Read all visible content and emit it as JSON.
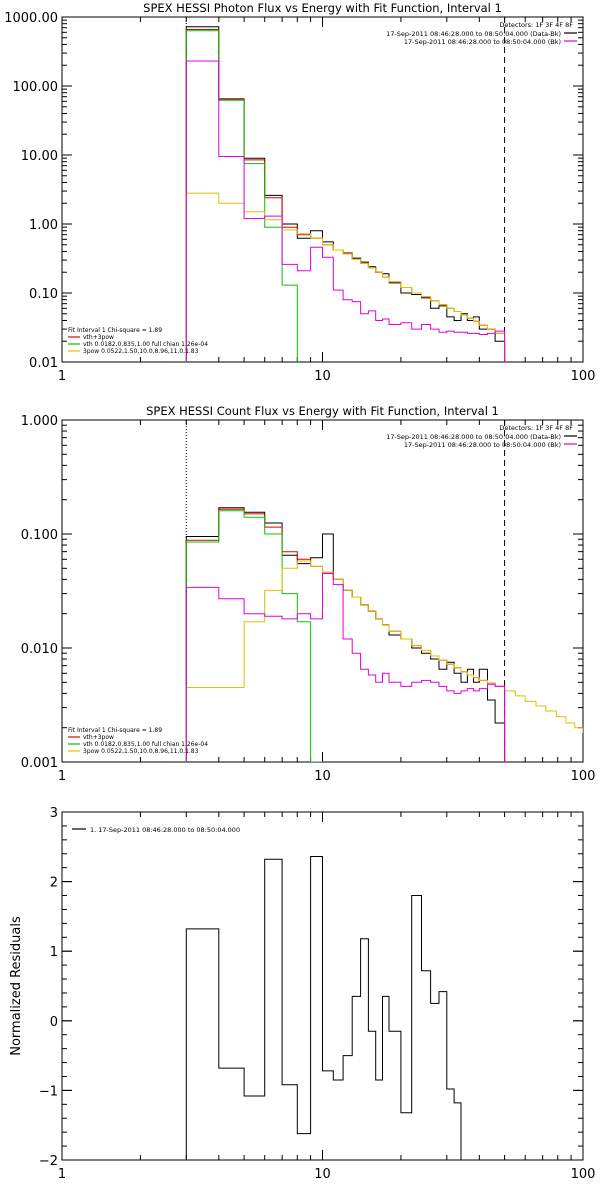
{
  "chart_data": [
    {
      "type": "line",
      "title": "SPEX HESSI Photon Flux vs Energy with Fit Function, Interval 1",
      "xscale": "log",
      "yscale": "log",
      "xlim": [
        1,
        100
      ],
      "ylim": [
        0.01,
        1000
      ],
      "xticks": [
        1,
        10,
        100
      ],
      "xtick_labels": [
        "1",
        "10",
        "100"
      ],
      "yticks": [
        0.01,
        0.1,
        1,
        10,
        100,
        1000
      ],
      "ytick_labels": [
        "0.01",
        "0.10",
        "1.00",
        "10.00",
        "100.00",
        "1000.00"
      ],
      "vlines": [
        {
          "x": 3,
          "style": "dotted"
        },
        {
          "x": 50,
          "style": "dashed"
        }
      ],
      "legend_top": {
        "header": "Detectors: 1F 3F 4F 8F",
        "entries": [
          {
            "text": "17-Sep-2011 08:46:28.000 to 08:50:04.000 (Data-Bk)",
            "color": "#000000"
          },
          {
            "text": "17-Sep-2011 08:46:28.000 to 08:50:04.000 (Bk)",
            "color": "#e000e0"
          }
        ]
      },
      "fit_legend": {
        "header": "Fit Interval 1    Chi-square = 1.89",
        "entries": [
          {
            "text": "vth+3pow",
            "color": "#e00000"
          },
          {
            "text": "vth 0.0182,0.835,1.00  full chian 1.26e-04",
            "color": "#00c800"
          },
          {
            "text": "3pow 0.0522,1.50,10.0,8.96,11.0,1.83",
            "color": "#e0c000"
          }
        ]
      },
      "edges": [
        3.0,
        4.0,
        5.0,
        6.0,
        7.0,
        8.0,
        9.0,
        10.0,
        11.0,
        12.0,
        13.0,
        14.0,
        15.0,
        16.0,
        17.0,
        18.0,
        20.0,
        22.0,
        24.0,
        26.0,
        28.0,
        30.0,
        32.0,
        34.0,
        36.0,
        38.0,
        40.0,
        43.0,
        46.0,
        50.0
      ],
      "series": [
        {
          "color": "#000000",
          "values": [
            720,
            65,
            9.0,
            2.6,
            1.0,
            0.62,
            0.8,
            0.55,
            0.42,
            0.38,
            0.32,
            0.28,
            0.24,
            0.2,
            0.19,
            0.14,
            0.1,
            0.095,
            0.085,
            0.06,
            0.065,
            0.045,
            0.04,
            0.05,
            0.04,
            0.045,
            0.03,
            0.03,
            0.02
          ]
        },
        {
          "color": "#e00000",
          "values": [
            660,
            64,
            8.5,
            2.4,
            0.9,
            0.7,
            0.62,
            0.5,
            0.42,
            0.37,
            0.31,
            0.27,
            0.23,
            0.2,
            0.17,
            0.145,
            0.12,
            0.1,
            0.088,
            0.077,
            0.068,
            0.06,
            0.054,
            0.048,
            0.043,
            0.039,
            0.034,
            0.03,
            0.026
          ]
        },
        {
          "color": "#00c800",
          "values": [
            630,
            62,
            7.5,
            0.9,
            0.13,
            0.005
          ]
        },
        {
          "color": "#e0c000",
          "values": [
            2.8,
            2.0,
            1.5,
            1.15,
            0.82,
            0.72,
            0.62,
            0.5,
            0.42,
            0.37,
            0.31,
            0.27,
            0.23,
            0.2,
            0.17,
            0.145,
            0.12,
            0.1,
            0.088,
            0.077,
            0.068,
            0.06,
            0.054,
            0.048,
            0.043,
            0.039,
            0.034,
            0.03,
            0.026
          ]
        },
        {
          "color": "#e000e0",
          "values": [
            230,
            9.5,
            1.2,
            1.3,
            0.26,
            0.21,
            0.46,
            0.33,
            0.11,
            0.08,
            0.075,
            0.05,
            0.055,
            0.04,
            0.042,
            0.035,
            0.037,
            0.03,
            0.035,
            0.03,
            0.027,
            0.028,
            0.027,
            0.027,
            0.026,
            0.026,
            0.025,
            0.026,
            0.028
          ]
        }
      ]
    },
    {
      "type": "line",
      "title": "SPEX HESSI Count Flux vs Energy with Fit Function, Interval 1",
      "xscale": "log",
      "yscale": "log",
      "xlim": [
        1,
        100
      ],
      "ylim": [
        0.001,
        1
      ],
      "xticks": [
        1,
        10,
        100
      ],
      "xtick_labels": [
        "1",
        "10",
        "100"
      ],
      "yticks": [
        0.001,
        0.01,
        0.1,
        1
      ],
      "ytick_labels": [
        "0.001",
        "0.010",
        "0.100",
        "1.000"
      ],
      "vlines": [
        {
          "x": 3,
          "style": "dotted"
        },
        {
          "x": 50,
          "style": "dashed"
        }
      ],
      "legend_top": {
        "header": "Detectors: 1F 3F 4F 8F",
        "entries": [
          {
            "text": "17-Sep-2011 08:46:28.000 to 08:50:04.000 (Data-Bk)",
            "color": "#000000"
          },
          {
            "text": "17-Sep-2011 08:46:28.000 to 08:50:04.000 (Bk)",
            "color": "#e000e0"
          }
        ]
      },
      "fit_legend": {
        "header": "Fit Interval 1    Chi-square = 1.89",
        "entries": [
          {
            "text": "vth+3pow",
            "color": "#e00000"
          },
          {
            "text": "vth 0.0182,0.835,1.00  full chian 1.26e-04",
            "color": "#00c800"
          },
          {
            "text": "3pow 0.0522,1.50,10.0,8.96,11.0,1.83",
            "color": "#e0c000"
          }
        ]
      },
      "edges": [
        3.0,
        4.0,
        5.0,
        6.0,
        7.0,
        8.0,
        9.0,
        10.0,
        11.0,
        12.0,
        13.0,
        14.0,
        15.0,
        16.0,
        17.0,
        18.0,
        20.0,
        22.0,
        24.0,
        26.0,
        28.0,
        30.0,
        32.0,
        34.0,
        36.0,
        38.0,
        40.0,
        43.0,
        46.0,
        50.0
      ],
      "series": [
        {
          "color": "#000000",
          "values": [
            0.095,
            0.17,
            0.155,
            0.125,
            0.065,
            0.055,
            0.062,
            0.1,
            0.04,
            0.032,
            0.028,
            0.024,
            0.021,
            0.018,
            0.016,
            0.013,
            0.012,
            0.01,
            0.009,
            0.008,
            0.0065,
            0.0075,
            0.006,
            0.005,
            0.0065,
            0.005,
            0.0065,
            0.0035,
            0.0022
          ]
        },
        {
          "color": "#e00000",
          "values": [
            0.088,
            0.165,
            0.15,
            0.115,
            0.07,
            0.06,
            0.052,
            0.046,
            0.04,
            0.032,
            0.028,
            0.024,
            0.021,
            0.018,
            0.016,
            0.014,
            0.012,
            0.0105,
            0.0095,
            0.0085,
            0.0078,
            0.0072,
            0.0067,
            0.0062,
            0.0058,
            0.0055,
            0.0052,
            0.0049,
            0.0046
          ]
        },
        {
          "color": "#00c800",
          "values": [
            0.085,
            0.16,
            0.14,
            0.1,
            0.03,
            0.017,
            0.001
          ]
        },
        {
          "color": "#e0c000",
          "values": [
            0.0045,
            0.0045,
            0.017,
            0.032,
            0.05,
            0.058,
            0.052,
            0.046,
            0.04,
            0.032,
            0.028,
            0.024,
            0.021,
            0.018,
            0.016,
            0.014,
            0.012,
            0.0105,
            0.0095,
            0.0085,
            0.0078,
            0.0072,
            0.0067,
            0.0062,
            0.0058,
            0.0055,
            0.0052,
            0.0049,
            0.0046,
            0.0042,
            0.0038,
            0.0034,
            0.0031,
            0.0028,
            0.0025,
            0.0022,
            0.002,
            0.0018
          ],
          "extra_edges": [
            55,
            60,
            66,
            72,
            79,
            86,
            93,
            100
          ]
        },
        {
          "color": "#e000e0",
          "values": [
            0.034,
            0.027,
            0.02,
            0.019,
            0.018,
            0.02,
            0.018,
            0.045,
            0.036,
            0.012,
            0.009,
            0.0065,
            0.0058,
            0.005,
            0.006,
            0.005,
            0.0046,
            0.005,
            0.0052,
            0.005,
            0.0046,
            0.0042,
            0.004,
            0.0042,
            0.0044,
            0.0042,
            0.0044,
            0.0048,
            0.0046
          ]
        }
      ]
    },
    {
      "type": "line",
      "title": "",
      "xscale": "log",
      "yscale": "linear",
      "xlim": [
        1,
        100
      ],
      "ylim": [
        -2,
        3
      ],
      "xticks": [
        1,
        10,
        100
      ],
      "xtick_labels": [
        "1",
        "10",
        "100"
      ],
      "yticks": [
        -2,
        -1,
        0,
        1,
        2,
        3
      ],
      "ytick_labels": [
        "−2",
        "−1",
        "0",
        "1",
        "2",
        "3"
      ],
      "ylabel": "Normalized Residuals",
      "legend_top": {
        "header": "",
        "entries": [
          {
            "text": "1. 17-Sep-2011 08:46:28.000 to 08:50:04.000",
            "color": "#000000"
          }
        ]
      },
      "edges": [
        3.0,
        4.0,
        5.0,
        6.0,
        7.0,
        8.0,
        9.0,
        10.0,
        11.0,
        12.0,
        13.0,
        14.0,
        15.0,
        16.0,
        17.0,
        18.0,
        20.0,
        22.0,
        24.0,
        26.0,
        28.0,
        30.0,
        32.0,
        34.0,
        36.0,
        38.0,
        40.0,
        43.0,
        46.0,
        50.0
      ],
      "series": [
        {
          "color": "#000000",
          "values": [
            1.32,
            -0.68,
            -1.08,
            2.32,
            -0.92,
            -1.62,
            2.36,
            -0.72,
            -0.85,
            -0.5,
            0.35,
            1.18,
            -0.15,
            -0.85,
            0.35,
            -0.15,
            -1.32,
            1.8,
            0.72,
            0.25,
            0.42,
            -0.98,
            -1.18
          ]
        }
      ]
    }
  ]
}
